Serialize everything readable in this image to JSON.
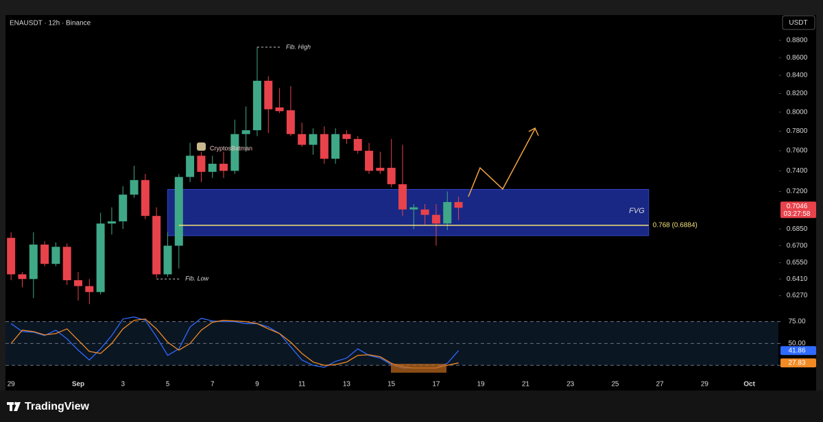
{
  "chart_data": {
    "type": "candlestick",
    "title": "ENAUSDT · 12h · Binance",
    "currency": "USDT",
    "brand": "TradingView",
    "watermark": "CryptosBatman",
    "up_color": "#3fa887",
    "down_color": "#e8424b",
    "log_scale": true,
    "x": [
      0,
      1,
      2,
      3,
      4,
      5,
      6,
      7,
      8,
      9,
      10,
      11,
      12,
      13,
      14,
      15,
      16,
      17,
      18,
      19,
      20,
      21,
      22,
      23,
      24,
      25,
      26,
      27,
      28,
      29,
      30,
      31,
      32,
      33,
      34,
      35,
      36,
      37,
      38,
      39,
      40
    ],
    "open": [
      0.677,
      0.645,
      0.641,
      0.671,
      0.654,
      0.669,
      0.64,
      0.635,
      0.63,
      0.69,
      0.692,
      0.717,
      0.731,
      0.697,
      0.645,
      0.67,
      0.734,
      0.755,
      0.739,
      0.747,
      0.74,
      0.777,
      0.781,
      0.834,
      0.805,
      0.802,
      0.777,
      0.766,
      0.777,
      0.752,
      0.777,
      0.772,
      0.76,
      0.743,
      0.743,
      0.727,
      0.703,
      0.703,
      0.698,
      0.69,
      0.71
    ],
    "high": [
      0.682,
      0.647,
      0.682,
      0.674,
      0.673,
      0.672,
      0.647,
      0.641,
      0.7,
      0.705,
      0.725,
      0.745,
      0.737,
      0.705,
      0.682,
      0.737,
      0.768,
      0.759,
      0.755,
      0.759,
      0.792,
      0.806,
      0.872,
      0.839,
      0.826,
      0.828,
      0.789,
      0.783,
      0.785,
      0.783,
      0.781,
      0.775,
      0.768,
      0.759,
      0.772,
      0.766,
      0.708,
      0.708,
      0.708,
      0.72,
      0.715
    ],
    "low": [
      0.64,
      0.634,
      0.625,
      0.652,
      0.652,
      0.636,
      0.623,
      0.62,
      0.628,
      0.68,
      0.685,
      0.714,
      0.694,
      0.642,
      0.643,
      0.65,
      0.729,
      0.729,
      0.733,
      0.733,
      0.737,
      0.759,
      0.775,
      0.778,
      0.799,
      0.775,
      0.764,
      0.756,
      0.747,
      0.747,
      0.767,
      0.757,
      0.737,
      0.737,
      0.724,
      0.697,
      0.685,
      0.689,
      0.67,
      0.684,
      0.693
    ],
    "close": [
      0.645,
      0.641,
      0.671,
      0.654,
      0.669,
      0.64,
      0.635,
      0.63,
      0.69,
      0.692,
      0.717,
      0.731,
      0.697,
      0.645,
      0.67,
      0.734,
      0.755,
      0.739,
      0.747,
      0.74,
      0.777,
      0.781,
      0.834,
      0.803,
      0.801,
      0.777,
      0.766,
      0.777,
      0.752,
      0.777,
      0.772,
      0.76,
      0.74,
      0.74,
      0.727,
      0.703,
      0.705,
      0.698,
      0.69,
      0.71,
      0.7046
    ],
    "xlim": [
      -0.5,
      68.6
    ],
    "xticks": [
      {
        "value": 0,
        "label": "29"
      },
      {
        "value": 6,
        "label": "Sep"
      },
      {
        "value": 10,
        "label": "3"
      },
      {
        "value": 14,
        "label": "5"
      },
      {
        "value": 18,
        "label": "7"
      },
      {
        "value": 22,
        "label": "9"
      },
      {
        "value": 26,
        "label": "11"
      },
      {
        "value": 30,
        "label": "13"
      },
      {
        "value": 34,
        "label": "15"
      },
      {
        "value": 38,
        "label": "17"
      },
      {
        "value": 42,
        "label": "19"
      },
      {
        "value": 46,
        "label": "21"
      },
      {
        "value": 50,
        "label": "23"
      },
      {
        "value": 54,
        "label": "25"
      },
      {
        "value": 58,
        "label": "27"
      },
      {
        "value": 62,
        "label": "29"
      },
      {
        "value": 66,
        "label": "Oct"
      }
    ],
    "ylim": [
      0.611,
      0.91
    ],
    "yticks": [
      {
        "value": 0.88,
        "label": "0.8800"
      },
      {
        "value": 0.86,
        "label": "0.8600"
      },
      {
        "value": 0.84,
        "label": "0.8400"
      },
      {
        "value": 0.82,
        "label": "0.8200"
      },
      {
        "value": 0.8,
        "label": "0.8000"
      },
      {
        "value": 0.78,
        "label": "0.7800"
      },
      {
        "value": 0.76,
        "label": "0.7600"
      },
      {
        "value": 0.74,
        "label": "0.7400"
      },
      {
        "value": 0.72,
        "label": "0.7200"
      },
      {
        "value": 0.685,
        "label": "0.6850"
      },
      {
        "value": 0.67,
        "label": "0.6700"
      },
      {
        "value": 0.655,
        "label": "0.6550"
      },
      {
        "value": 0.641,
        "label": "0.6410"
      },
      {
        "value": 0.627,
        "label": "0.6270"
      }
    ],
    "last_price": 0.7046,
    "countdown": "03:27:58",
    "zone": {
      "label": "FVG",
      "x": [
        14,
        57
      ],
      "y": [
        0.679,
        0.722
      ],
      "color": "#1a2a8c"
    },
    "level": {
      "value": 0.6884,
      "label": "0.768 (0.6884)",
      "x": [
        15,
        57
      ],
      "color": "#f3e27a"
    },
    "fib_high": {
      "label": "Fib. High",
      "value": 0.872,
      "x": 22
    },
    "fib_low": {
      "label": "Fib. Low",
      "value": 0.641,
      "x": 13
    },
    "indicator": {
      "ylim": [
        8,
        84
      ],
      "yticks": [
        {
          "value": 75,
          "label": "75.00"
        },
        {
          "value": 50,
          "label": "50.00"
        }
      ],
      "band": [
        25,
        75
      ],
      "series": [
        {
          "color": "#2f6bff",
          "values": [
            72.7,
            63.6,
            62.9,
            59.1,
            65.2,
            55.3,
            42.4,
            31.1,
            43.9,
            59.1,
            78.0,
            80.3,
            76.5,
            57.6,
            36.4,
            43.9,
            68.9,
            78.8,
            75.8,
            75.0,
            75.0,
            72.7,
            72.7,
            68.9,
            61.4,
            46.2,
            31.1,
            25.0,
            22.7,
            29.5,
            33.3,
            43.9,
            36.4,
            33.3,
            25.8,
            22.0,
            22.0,
            22.0,
            22.0,
            27.3,
            41.86
          ]
        },
        {
          "color": "#f28b24",
          "values": [
            50.0,
            65.2,
            63.6,
            59.8,
            61.4,
            66.7,
            53.8,
            40.9,
            38.6,
            50.0,
            66.7,
            76.5,
            78.0,
            66.7,
            51.5,
            42.4,
            50.0,
            65.2,
            74.2,
            76.5,
            75.8,
            75.0,
            72.7,
            66.7,
            61.4,
            51.5,
            38.6,
            28.8,
            25.0,
            25.8,
            28.8,
            36.4,
            37.1,
            34.8,
            27.3,
            23.5,
            22.0,
            22.0,
            22.0,
            25.0,
            27.83
          ]
        }
      ]
    }
  }
}
